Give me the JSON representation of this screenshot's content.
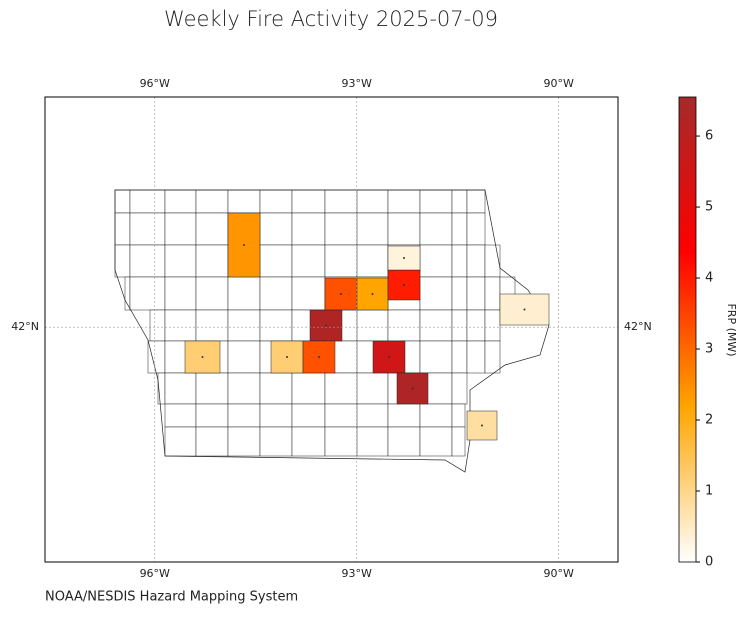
{
  "chart_data": {
    "type": "map",
    "title": "Weekly Fire Activity 2025-07-09",
    "source": "NOAA/NESDIS Hazard Mapping System",
    "xlim": [
      -97.63,
      -89.12
    ],
    "ylim": [
      38.51,
      45.42
    ],
    "xticks": [
      {
        "value": -96,
        "label": "96°W"
      },
      {
        "value": -93,
        "label": "93°W"
      },
      {
        "value": -90,
        "label": "90°W"
      }
    ],
    "yticks": [
      {
        "value": 42,
        "label": "42°N"
      }
    ],
    "grid": true,
    "colorbar": {
      "label": "FRP (MW)",
      "lim": [
        0,
        6.55
      ],
      "ticks": [
        0,
        1,
        2,
        3,
        4,
        5,
        6
      ],
      "colormap": [
        "#ffffff",
        "#ffa500",
        "#ff0000",
        "#a52a2a"
      ]
    },
    "fires": [
      2.4,
      3.3,
      2.2,
      4.0,
      0.3,
      6.3,
      1.2,
      1.2,
      3.3,
      5.5,
      6.3,
      0.4,
      0.8
    ]
  }
}
